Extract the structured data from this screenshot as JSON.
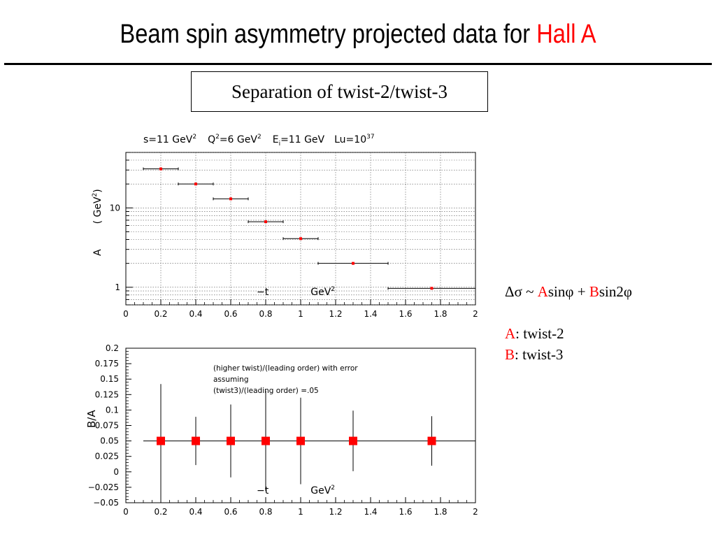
{
  "slide": {
    "title_main": "Beam spin asymmetry projected data for ",
    "title_highlight": "Hall A",
    "subtitle": "Separation of twist-2/twist-3"
  },
  "formula": {
    "delta_sigma": "Δσ",
    "tilde": " ~ ",
    "A": "A",
    "sin_phi": "sinφ",
    "plus": " + ",
    "B": "B",
    "sin_2phi": "sin2φ",
    "twist2_label": "A",
    "twist2_text": ": twist-2",
    "twist3_label": "B",
    "twist3_text": ": twist-3"
  },
  "colors": {
    "highlight": "#ff0000",
    "marker": "#ff0000",
    "axis": "#000000",
    "grid": "#555555"
  },
  "chart_data": [
    {
      "type": "scatter",
      "header": {
        "s": "s=11 GeV",
        "s_exp": "2",
        "q": "Q",
        "q_exp": "2",
        "q_val": "=6 GeV",
        "q_val_exp": "2",
        "e": "E",
        "e_sub": "i",
        "e_val": "=11 GeV",
        "lu": "Lu=10",
        "lu_exp": "37"
      },
      "ylabel_parts": {
        "a": "A",
        "unit": "( GeV",
        "unit_exp": "2",
        "close": ")"
      },
      "xlabel_parts": {
        "t": "−t",
        "unit": "GeV",
        "unit_exp": "2"
      },
      "xlim": [
        0,
        2
      ],
      "ylim": [
        0.6,
        50
      ],
      "yscale": "log",
      "grid": true,
      "x_ticks": [
        "0",
        "0.2",
        "0.4",
        "0.6",
        "0.8",
        "1",
        "1.2",
        "1.4",
        "1.6",
        "1.8",
        "2"
      ],
      "y_tick_labels": [
        {
          "value": 1,
          "label": "1"
        },
        {
          "value": 10,
          "label": "10"
        }
      ],
      "points": [
        {
          "x": 0.2,
          "xlo": 0.1,
          "xhi": 0.3,
          "y": 31
        },
        {
          "x": 0.4,
          "xlo": 0.3,
          "xhi": 0.5,
          "y": 20
        },
        {
          "x": 0.6,
          "xlo": 0.5,
          "xhi": 0.7,
          "y": 13
        },
        {
          "x": 0.8,
          "xlo": 0.7,
          "xhi": 0.9,
          "y": 6.7
        },
        {
          "x": 1.0,
          "xlo": 0.9,
          "xhi": 1.1,
          "y": 4.1
        },
        {
          "x": 1.3,
          "xlo": 1.1,
          "xhi": 1.5,
          "y": 2.0
        },
        {
          "x": 1.75,
          "xlo": 1.5,
          "xhi": 2.0,
          "y": 0.97
        }
      ]
    },
    {
      "type": "scatter",
      "ylabel": "B/A",
      "xlabel_parts": {
        "t": "−t",
        "unit": "GeV",
        "unit_exp": "2"
      },
      "annotation": [
        "(higher twist)/(leading order)    with error",
        "assuming",
        "(twist3)/(leading order) =.05"
      ],
      "xlim": [
        0,
        2
      ],
      "ylim": [
        -0.05,
        0.2
      ],
      "grid": false,
      "x_ticks": [
        "0",
        "0.2",
        "0.4",
        "0.6",
        "0.8",
        "1",
        "1.2",
        "1.4",
        "1.6",
        "1.8",
        "2"
      ],
      "y_ticks": [
        "0.2",
        "0.175",
        "0.15",
        "0.125",
        "0.1",
        "0.075",
        "0.05",
        "0.025",
        "0",
        "−0.025",
        "−0.05"
      ],
      "reference_line": {
        "y": 0.05,
        "x_from": 0.1,
        "x_to": 2.0
      },
      "points": [
        {
          "x": 0.2,
          "y": 0.05,
          "ylo": -0.05,
          "yhi": 0.142
        },
        {
          "x": 0.4,
          "y": 0.05,
          "ylo": 0.011,
          "yhi": 0.089
        },
        {
          "x": 0.6,
          "y": 0.05,
          "ylo": -0.009,
          "yhi": 0.109
        },
        {
          "x": 0.8,
          "y": 0.05,
          "ylo": -0.031,
          "yhi": 0.131
        },
        {
          "x": 1.0,
          "y": 0.05,
          "ylo": -0.02,
          "yhi": 0.12
        },
        {
          "x": 1.3,
          "y": 0.05,
          "ylo": 0.001,
          "yhi": 0.099
        },
        {
          "x": 1.75,
          "y": 0.05,
          "ylo": 0.01,
          "yhi": 0.09
        }
      ]
    }
  ]
}
